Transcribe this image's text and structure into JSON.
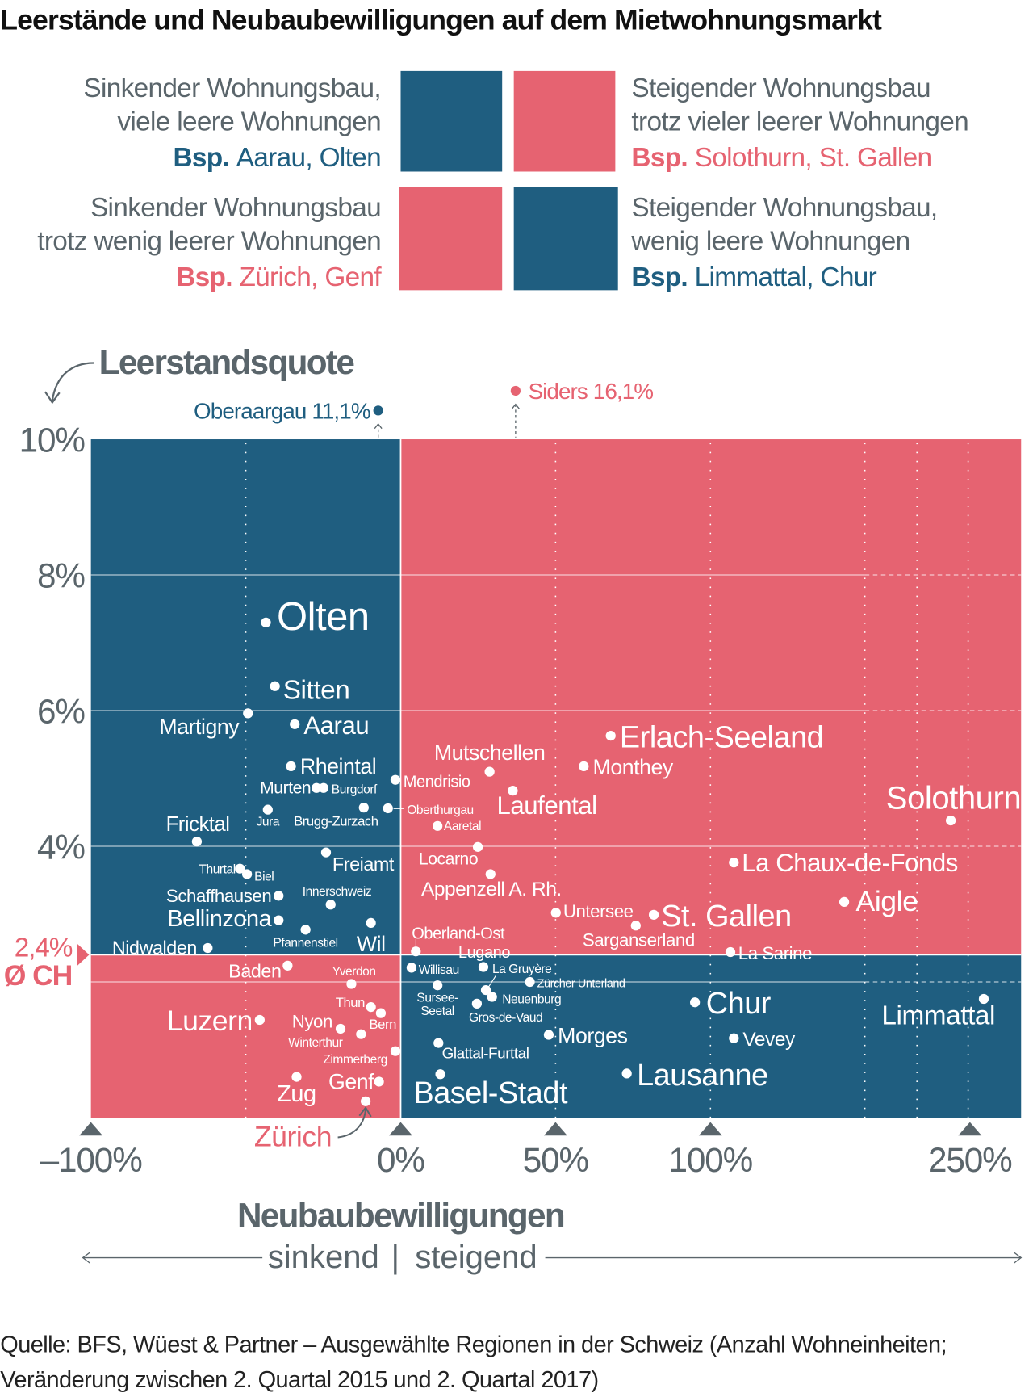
{
  "title": "Leerstände und Neubaubewilligungen auf dem Mietwohnungsmarkt",
  "colors": {
    "blue": "#1f5e80",
    "red": "#e66371",
    "gray": "#5a656b"
  },
  "legend": [
    {
      "line1": "Sinkender Wohnungsbau,",
      "line2": "viele leere Wohnungen",
      "bsp": "Bsp.",
      "example": "Aarau, Olten",
      "color": "blue"
    },
    {
      "line1": "Steigender Wohnungsbau",
      "line2": "trotz vieler leerer Wohnungen",
      "bsp": "Bsp.",
      "example": "Solothurn, St. Gallen",
      "color": "red"
    },
    {
      "line1": "Sinkender Wohnungsbau",
      "line2": "trotz wenig leerer Wohnungen",
      "bsp": "Bsp.",
      "example": "Zürich, Genf",
      "color": "red"
    },
    {
      "line1": "Steigender Wohnungsbau,",
      "line2": "wenig leere Wohnungen",
      "bsp": "Bsp.",
      "example": "Limmattal, Chur",
      "color": "blue"
    }
  ],
  "chart_data": {
    "type": "scatter",
    "ylabel": "Leerstandsquote",
    "xlabel": "Neubaubewilligungen",
    "x_direction": {
      "left": "sinkend",
      "separator": "|",
      "right": "steigend"
    },
    "x_ticks": [
      {
        "value": -100,
        "label": "–100%"
      },
      {
        "value": 0,
        "label": "0%"
      },
      {
        "value": 50,
        "label": "50%"
      },
      {
        "value": 100,
        "label": "100%"
      },
      {
        "value": 250,
        "label": "250%"
      }
    ],
    "y_ticks": [
      {
        "value": 10,
        "label": "10%"
      },
      {
        "value": 8,
        "label": "8%"
      },
      {
        "value": 6,
        "label": "6%"
      },
      {
        "value": 4,
        "label": "4%"
      }
    ],
    "xlim": [
      -100,
      260
    ],
    "ylim": [
      0,
      10
    ],
    "x_axis_break": "between 100% and 250%",
    "grid": true,
    "average": {
      "label": "Ø CH",
      "value": 2.4,
      "value_label": "2,4%"
    },
    "outliers": [
      {
        "name": "Oberaargau",
        "label": "Oberaargau 11,1%",
        "x": -7,
        "y": 11.1
      },
      {
        "name": "Siders",
        "label": "Siders 16,1%",
        "x": 37,
        "y": 16.1
      }
    ],
    "points": [
      {
        "name": "Olten",
        "x": -43.5,
        "y": 7.3
      },
      {
        "name": "Sitten",
        "x": -40.6,
        "y": 6.36
      },
      {
        "name": "Martigny",
        "x": -49.3,
        "y": 5.96
      },
      {
        "name": "Aarau",
        "x": -34.2,
        "y": 5.8
      },
      {
        "name": "Rheintal",
        "x": -35.4,
        "y": 5.18
      },
      {
        "name": "Murten",
        "x": -27.2,
        "y": 4.86
      },
      {
        "name": "Burgdorf",
        "x": -24.9,
        "y": 4.86
      },
      {
        "name": "Jura",
        "x": -42.9,
        "y": 4.54
      },
      {
        "name": "Brugg-Zurzach",
        "x": -11.9,
        "y": 4.57
      },
      {
        "name": "Mendrisio",
        "x": -1.7,
        "y": 4.98
      },
      {
        "name": "Oberthurgau",
        "x": -4.1,
        "y": 4.56
      },
      {
        "name": "Aaretal",
        "x": 11.9,
        "y": 4.3
      },
      {
        "name": "Fricktal",
        "x": -65.8,
        "y": 4.07
      },
      {
        "name": "Freiamt",
        "x": -24.1,
        "y": 3.91
      },
      {
        "name": "Locarno",
        "x": 24.9,
        "y": 3.99
      },
      {
        "name": "Mutschellen",
        "x": 28.7,
        "y": 5.1
      },
      {
        "name": "Laufental",
        "x": 36.2,
        "y": 4.82
      },
      {
        "name": "Thurtal",
        "x": -51.9,
        "y": 3.67
      },
      {
        "name": "Biel",
        "x": -49.6,
        "y": 3.59
      },
      {
        "name": "Appenzell A. Rh.",
        "x": 29,
        "y": 3.59
      },
      {
        "name": "Schaffhausen",
        "x": -39.4,
        "y": 3.27
      },
      {
        "name": "Innerschweiz",
        "x": -22.6,
        "y": 3.14
      },
      {
        "name": "Bellinzona",
        "x": -39.4,
        "y": 2.91
      },
      {
        "name": "Pfannenstiel",
        "x": -30.7,
        "y": 2.77
      },
      {
        "name": "Wil",
        "x": -9.6,
        "y": 2.87
      },
      {
        "name": "Nidwalden",
        "x": -62.3,
        "y": 2.5
      },
      {
        "name": "Oberland-Ost",
        "x": 4.9,
        "y": 2.45
      },
      {
        "name": "Lugano",
        "x": 26.7,
        "y": 2.22
      },
      {
        "name": "Untersee",
        "x": 50.1,
        "y": 3.02
      },
      {
        "name": "St. Gallen",
        "x": 81.7,
        "y": 2.99
      },
      {
        "name": "Sarganserland",
        "x": 75.9,
        "y": 2.83
      },
      {
        "name": "Erlach-Seeland",
        "x": 67.8,
        "y": 5.63
      },
      {
        "name": "Monthey",
        "x": 59.1,
        "y": 5.18
      },
      {
        "name": "La Chaux-de-Fonds",
        "x": 114,
        "y": 3.76
      },
      {
        "name": "Aigle",
        "x": 177.6,
        "y": 3.18
      },
      {
        "name": "Solothurn",
        "x": 239,
        "y": 4.38
      },
      {
        "name": "La Sarine",
        "x": 112,
        "y": 2.44
      },
      {
        "name": "Willisau",
        "x": 3.5,
        "y": 2.21
      },
      {
        "name": "La Gruyère",
        "x": 27.5,
        "y": 1.88
      },
      {
        "name": "Zürcher Unterland",
        "x": 41.7,
        "y": 2.0
      },
      {
        "name": "Sursee-Seetal",
        "x": 11.9,
        "y": 1.95
      },
      {
        "name": "Neuenburg",
        "x": 29.5,
        "y": 1.78
      },
      {
        "name": "Gros-de-Vaud",
        "x": 24.6,
        "y": 1.68
      },
      {
        "name": "Morges",
        "x": 47.8,
        "y": 1.22
      },
      {
        "name": "Glattal-Furttal",
        "x": 12.2,
        "y": 1.1
      },
      {
        "name": "Basel-Stadt",
        "x": 12.8,
        "y": 0.64
      },
      {
        "name": "Lausanne",
        "x": 73,
        "y": 0.65
      },
      {
        "name": "Chur",
        "x": 95,
        "y": 1.7
      },
      {
        "name": "Vevey",
        "x": 114,
        "y": 1.17
      },
      {
        "name": "Limmattal",
        "x": 258,
        "y": 1.75
      },
      {
        "name": "Baden",
        "x": -36.5,
        "y": 2.24
      },
      {
        "name": "Yverdon",
        "x": -15.9,
        "y": 1.97
      },
      {
        "name": "Luzern",
        "x": -45.5,
        "y": 1.44
      },
      {
        "name": "Thun",
        "x": -9.6,
        "y": 1.63
      },
      {
        "name": "Bern",
        "x": -6.4,
        "y": 1.54
      },
      {
        "name": "Nyon",
        "x": -19.4,
        "y": 1.31
      },
      {
        "name": "Winterthur",
        "x": -12.8,
        "y": 1.23
      },
      {
        "name": "Zimmerberg",
        "x": -1.7,
        "y": 0.98
      },
      {
        "name": "Zug",
        "x": -33.6,
        "y": 0.6
      },
      {
        "name": "Genf",
        "x": -7,
        "y": 0.53
      },
      {
        "name": "Zürich",
        "x": -11.3,
        "y": 0.24
      }
    ]
  },
  "source": {
    "line1": "Quelle: BFS, Wüest & Partner – Ausgewählte Regionen in der Schweiz (Anzahl Wohneinheiten;",
    "line2": "Veränderung zwischen 2. Quartal 2015 und 2. Quartal 2017)"
  }
}
